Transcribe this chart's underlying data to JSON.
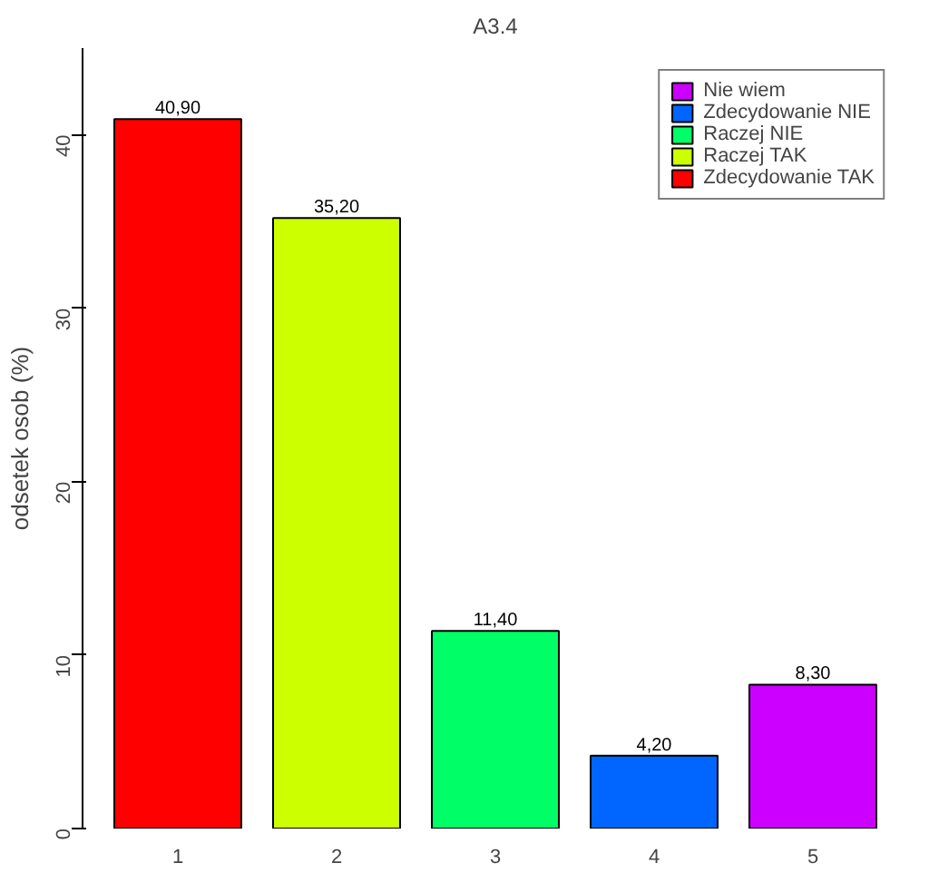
{
  "chart_data": {
    "type": "bar",
    "title": "A3.4",
    "ylabel": "odsetek osob (%)",
    "categories": [
      "1",
      "2",
      "3",
      "4",
      "5"
    ],
    "series": [
      {
        "name": "Nie wiem",
        "color": "#cc00ff",
        "values": [
          null,
          null,
          null,
          null,
          8.3
        ],
        "value_labels": [
          null,
          null,
          null,
          null,
          "8,30"
        ]
      },
      {
        "name": "Zdecydowanie NIE",
        "color": "#0066ff",
        "values": [
          null,
          null,
          null,
          4.2,
          null
        ],
        "value_labels": [
          null,
          null,
          null,
          "4,20",
          null
        ]
      },
      {
        "name": "Raczej NIE",
        "color": "#00ff66",
        "values": [
          null,
          null,
          11.4,
          null,
          null
        ],
        "value_labels": [
          null,
          null,
          "11,40",
          null,
          null
        ]
      },
      {
        "name": "Raczej TAK",
        "color": "#ccff00",
        "values": [
          null,
          35.2,
          null,
          null,
          null
        ],
        "value_labels": [
          null,
          "35,20",
          null,
          null,
          null
        ]
      },
      {
        "name": "Zdecydowanie TAK",
        "color": "#ff0000",
        "values": [
          40.9,
          null,
          null,
          null,
          null
        ],
        "value_labels": [
          "40,90",
          null,
          null,
          null,
          null
        ]
      }
    ],
    "ylim": [
      0,
      45
    ],
    "yticks": [
      0,
      10,
      20,
      30,
      40
    ],
    "grid": false,
    "legend": "top right"
  }
}
